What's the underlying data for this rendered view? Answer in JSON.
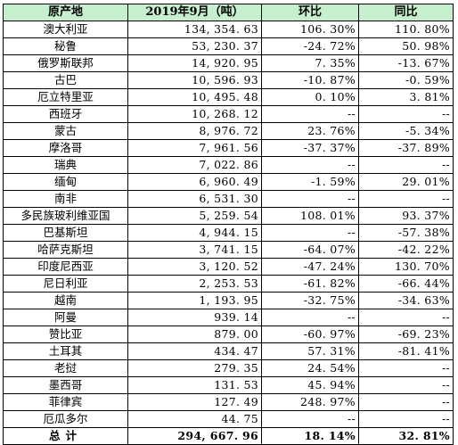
{
  "headers": [
    "原产地",
    "2019年9月（吨）",
    "环比",
    "同比"
  ],
  "rows": [
    {
      "origin": "澳大利亚",
      "volume": "134, 354. 63",
      "mom": "106. 30%",
      "yoy": "110. 80%"
    },
    {
      "origin": "秘鲁",
      "volume": "53, 230. 37",
      "mom": "-24. 72%",
      "yoy": "50. 98%"
    },
    {
      "origin": "俄罗斯联邦",
      "volume": "14, 920. 95",
      "mom": "7. 35%",
      "yoy": "-13. 67%"
    },
    {
      "origin": "古巴",
      "volume": "10, 596. 93",
      "mom": "-10. 87%",
      "yoy": "-0. 59%"
    },
    {
      "origin": "厄立特里亚",
      "volume": "10, 495. 48",
      "mom": "0. 10%",
      "yoy": "3. 81%"
    },
    {
      "origin": "西班牙",
      "volume": "10, 268. 12",
      "mom": "--",
      "yoy": "--"
    },
    {
      "origin": "蒙古",
      "volume": "8, 976. 72",
      "mom": "23. 76%",
      "yoy": "-5. 34%"
    },
    {
      "origin": "摩洛哥",
      "volume": "7, 961. 56",
      "mom": "-37. 37%",
      "yoy": "-37. 89%"
    },
    {
      "origin": "瑞典",
      "volume": "7, 022. 86",
      "mom": "--",
      "yoy": "--"
    },
    {
      "origin": "缅甸",
      "volume": "6, 960. 49",
      "mom": "-1. 59%",
      "yoy": "29. 01%"
    },
    {
      "origin": "南非",
      "volume": "6, 531. 30",
      "mom": "--",
      "yoy": "--"
    },
    {
      "origin": "多民族玻利维亚国",
      "volume": "5, 259. 54",
      "mom": "108. 01%",
      "yoy": "93. 37%"
    },
    {
      "origin": "巴基斯坦",
      "volume": "4, 944. 15",
      "mom": "--",
      "yoy": "-57. 38%"
    },
    {
      "origin": "哈萨克斯坦",
      "volume": "3, 741. 15",
      "mom": "-64. 07%",
      "yoy": "-42. 22%"
    },
    {
      "origin": "印度尼西亚",
      "volume": "3, 120. 52",
      "mom": "-47. 24%",
      "yoy": "130. 70%"
    },
    {
      "origin": "尼日利亚",
      "volume": "2, 253. 53",
      "mom": "-61. 82%",
      "yoy": "-66. 44%"
    },
    {
      "origin": "越南",
      "volume": "1, 193. 95",
      "mom": "-32. 75%",
      "yoy": "-34. 63%"
    },
    {
      "origin": "阿曼",
      "volume": "939. 14",
      "mom": "--",
      "yoy": "--"
    },
    {
      "origin": "赞比亚",
      "volume": "879. 00",
      "mom": "-60. 97%",
      "yoy": "-69. 23%"
    },
    {
      "origin": "土耳其",
      "volume": "434. 47",
      "mom": "57. 31%",
      "yoy": "-81. 41%"
    },
    {
      "origin": "老挝",
      "volume": "279. 35",
      "mom": "24. 54%",
      "yoy": "--"
    },
    {
      "origin": "墨西哥",
      "volume": "131. 53",
      "mom": "45. 94%",
      "yoy": "--"
    },
    {
      "origin": "菲律宾",
      "volume": "127. 49",
      "mom": "248. 97%",
      "yoy": "--"
    },
    {
      "origin": "厄瓜多尔",
      "volume": "44. 75",
      "mom": "--",
      "yoy": "--"
    }
  ],
  "total": {
    "origin": "总计",
    "volume": "294, 667. 96",
    "mom": "18. 14%",
    "yoy": "32. 81%"
  },
  "colors": {
    "header_bg": "#c6efce",
    "border": "#000000"
  }
}
